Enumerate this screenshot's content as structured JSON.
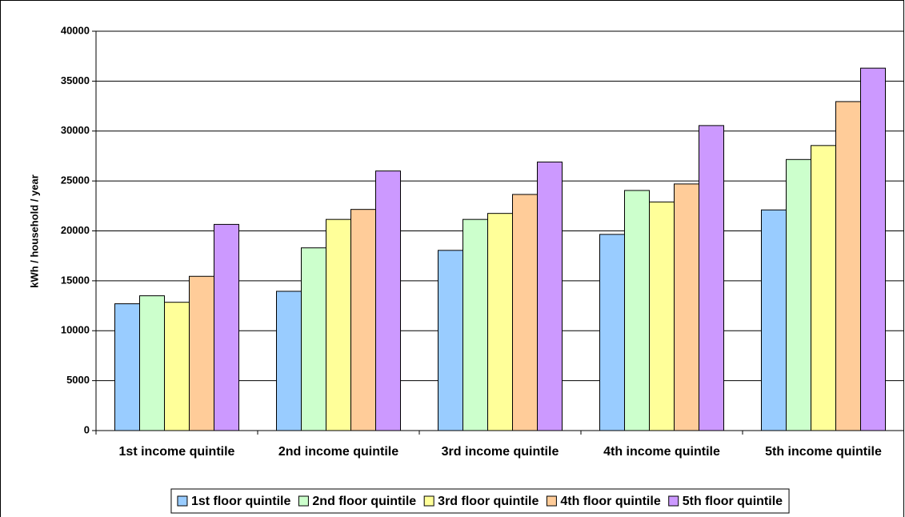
{
  "chart_data": {
    "type": "bar",
    "y_label": "kWh / household / year",
    "categories": [
      "1st income quintile",
      "2nd income quintile",
      "3rd income quintile",
      "4th income quintile",
      "5th income quintile"
    ],
    "series": [
      {
        "name": "1st floor quintile",
        "color": "#99ccff",
        "values": [
          12700,
          13950,
          18050,
          19650,
          22100
        ]
      },
      {
        "name": "2nd floor quintile",
        "color": "#ccffcc",
        "values": [
          13500,
          18300,
          21150,
          24050,
          27150
        ]
      },
      {
        "name": "3rd floor quintile",
        "color": "#ffff99",
        "values": [
          12850,
          21150,
          21750,
          22900,
          28550
        ]
      },
      {
        "name": "4th floor quintile",
        "color": "#ffcc99",
        "values": [
          15450,
          22150,
          23650,
          24700,
          32950
        ]
      },
      {
        "name": "5th floor quintile",
        "color": "#cc99ff",
        "values": [
          20650,
          26000,
          26900,
          30550,
          36300
        ]
      }
    ],
    "ylim": [
      0,
      40000
    ],
    "yticks": [
      0,
      5000,
      10000,
      15000,
      20000,
      25000,
      30000,
      35000,
      40000
    ],
    "grid": true,
    "legend": "bottom"
  }
}
